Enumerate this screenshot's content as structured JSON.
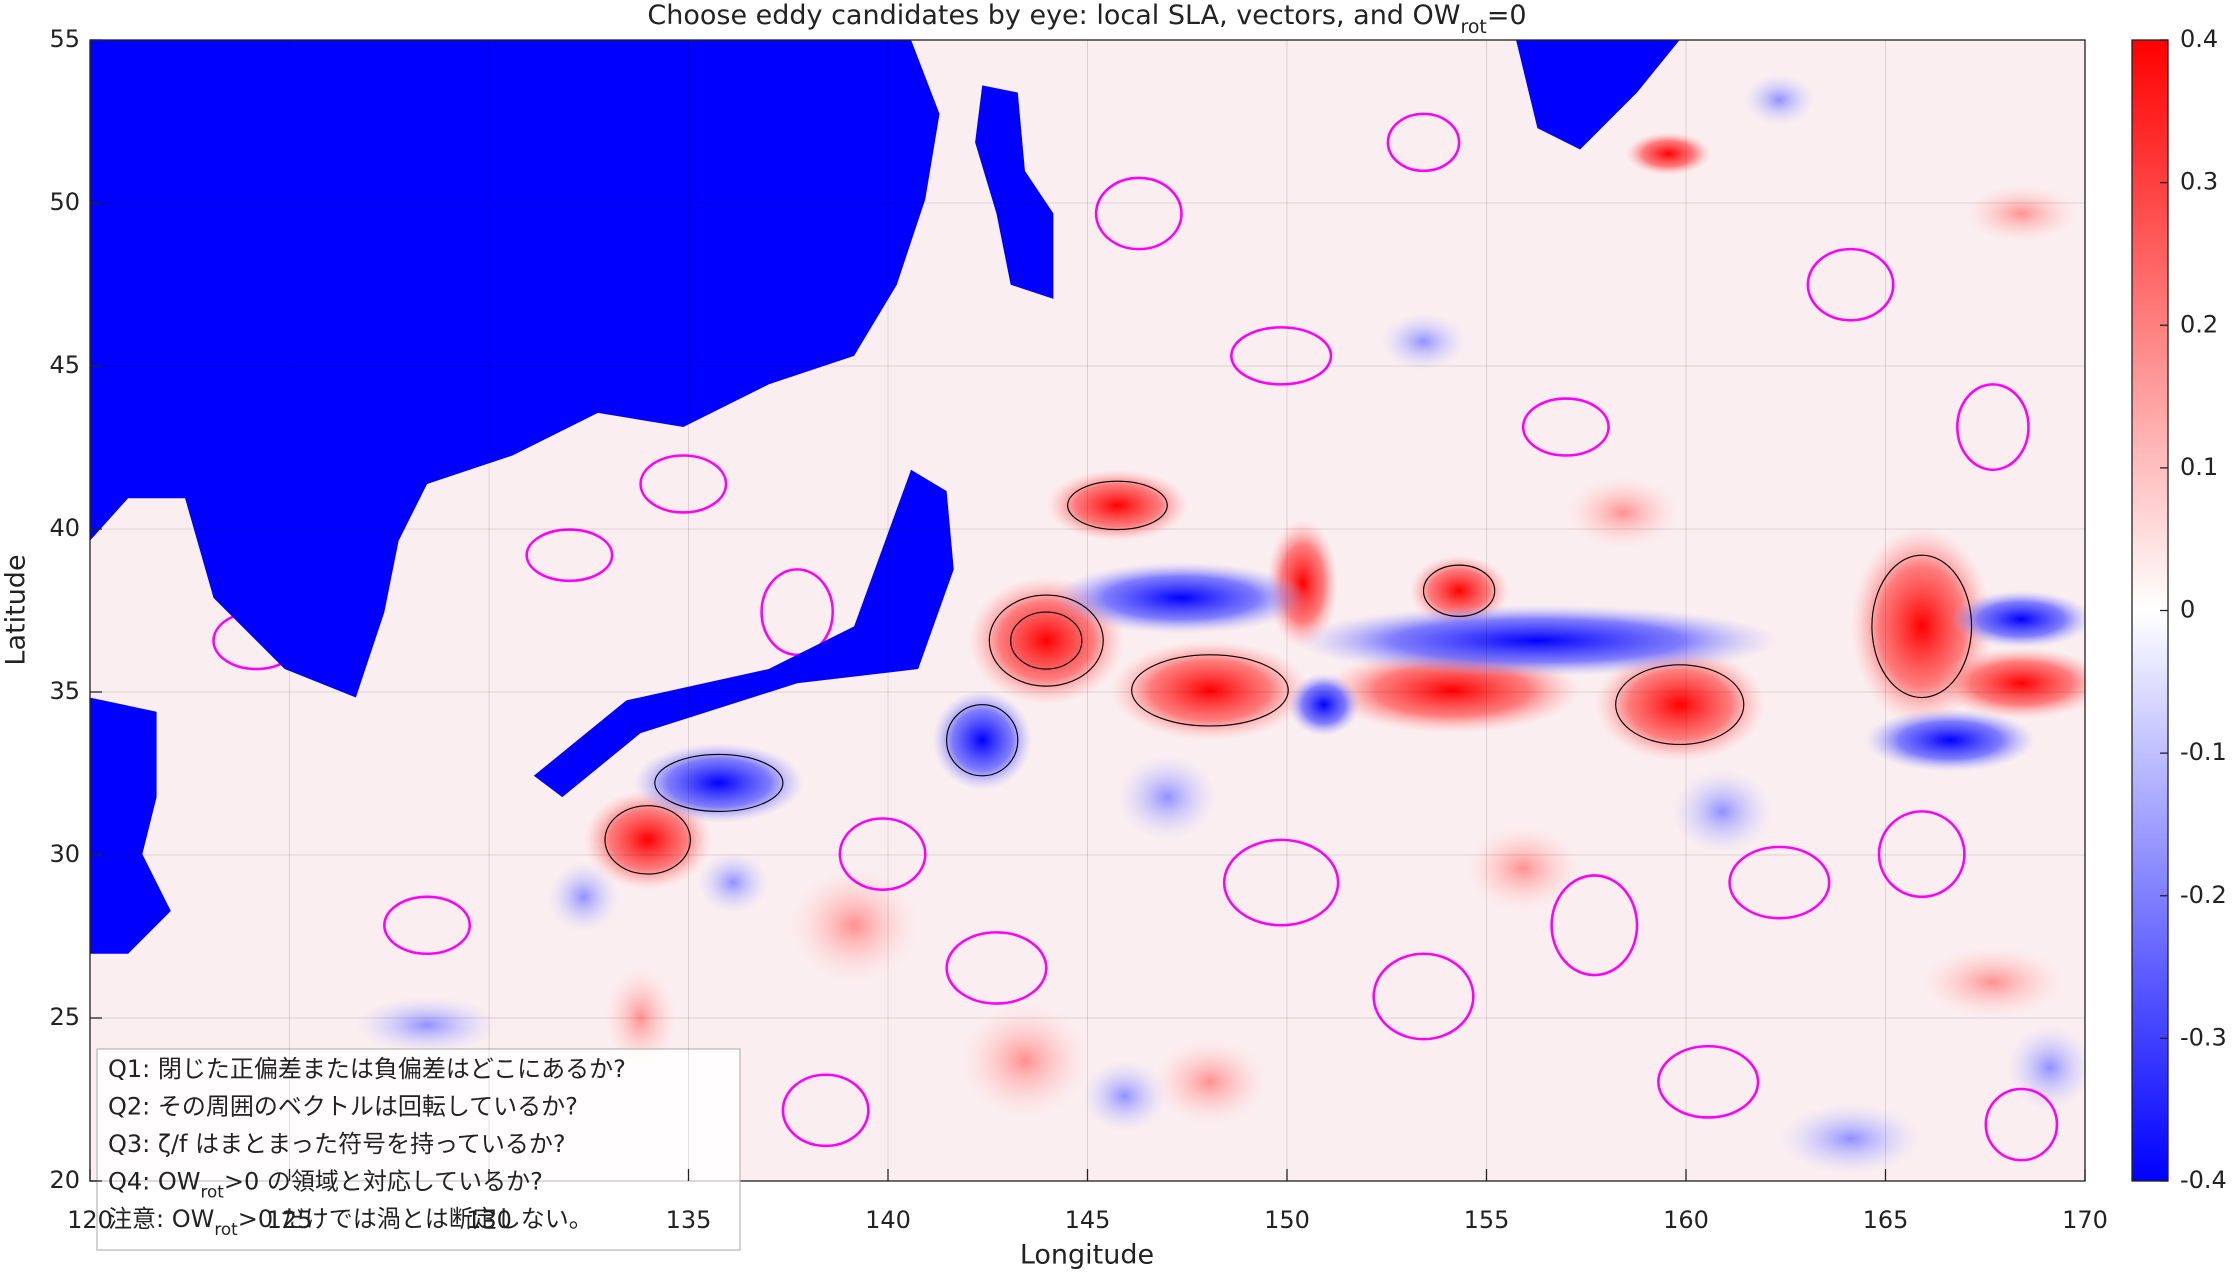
{
  "chart_data": {
    "type": "heatmap",
    "title": [
      "Choose eddy candidates by eye: local SLA, vectors, and OW",
      "rot",
      "=0"
    ],
    "x_label": "Longitude",
    "y_label": "Latitude",
    "xlim": [
      120,
      170
    ],
    "ylim": [
      20,
      55
    ],
    "xticks": [
      120,
      125,
      130,
      135,
      140,
      145,
      150,
      155,
      160,
      165,
      170
    ],
    "yticks": [
      20,
      25,
      30,
      35,
      40,
      45,
      50,
      55
    ],
    "clim": [
      -0.4,
      0.4
    ],
    "cticks": [
      -0.4,
      -0.3,
      -0.2,
      -0.1,
      0,
      0.1,
      0.2,
      0.3,
      0.4
    ],
    "colormap": [
      "#0000ff",
      "#ffffff",
      "#ff0000"
    ],
    "land_color": "#0000ff",
    "contour_color": "#ff00ff",
    "grid": true,
    "annotations": [
      [
        "Q1:  閉じた正偏差または負偏差はどこにあるか?"
      ],
      [
        "Q2:  その周囲のベクトルは回転しているか?"
      ],
      [
        "Q3:  ζ/f  はまとまった符号を持っているか?"
      ],
      [
        "Q4:  OW",
        "rot",
        ">0  の領域と対応しているか?"
      ],
      [
        "注意: OW",
        "rot",
        ">0 だけでは渦とは断定しない。"
      ]
    ]
  }
}
